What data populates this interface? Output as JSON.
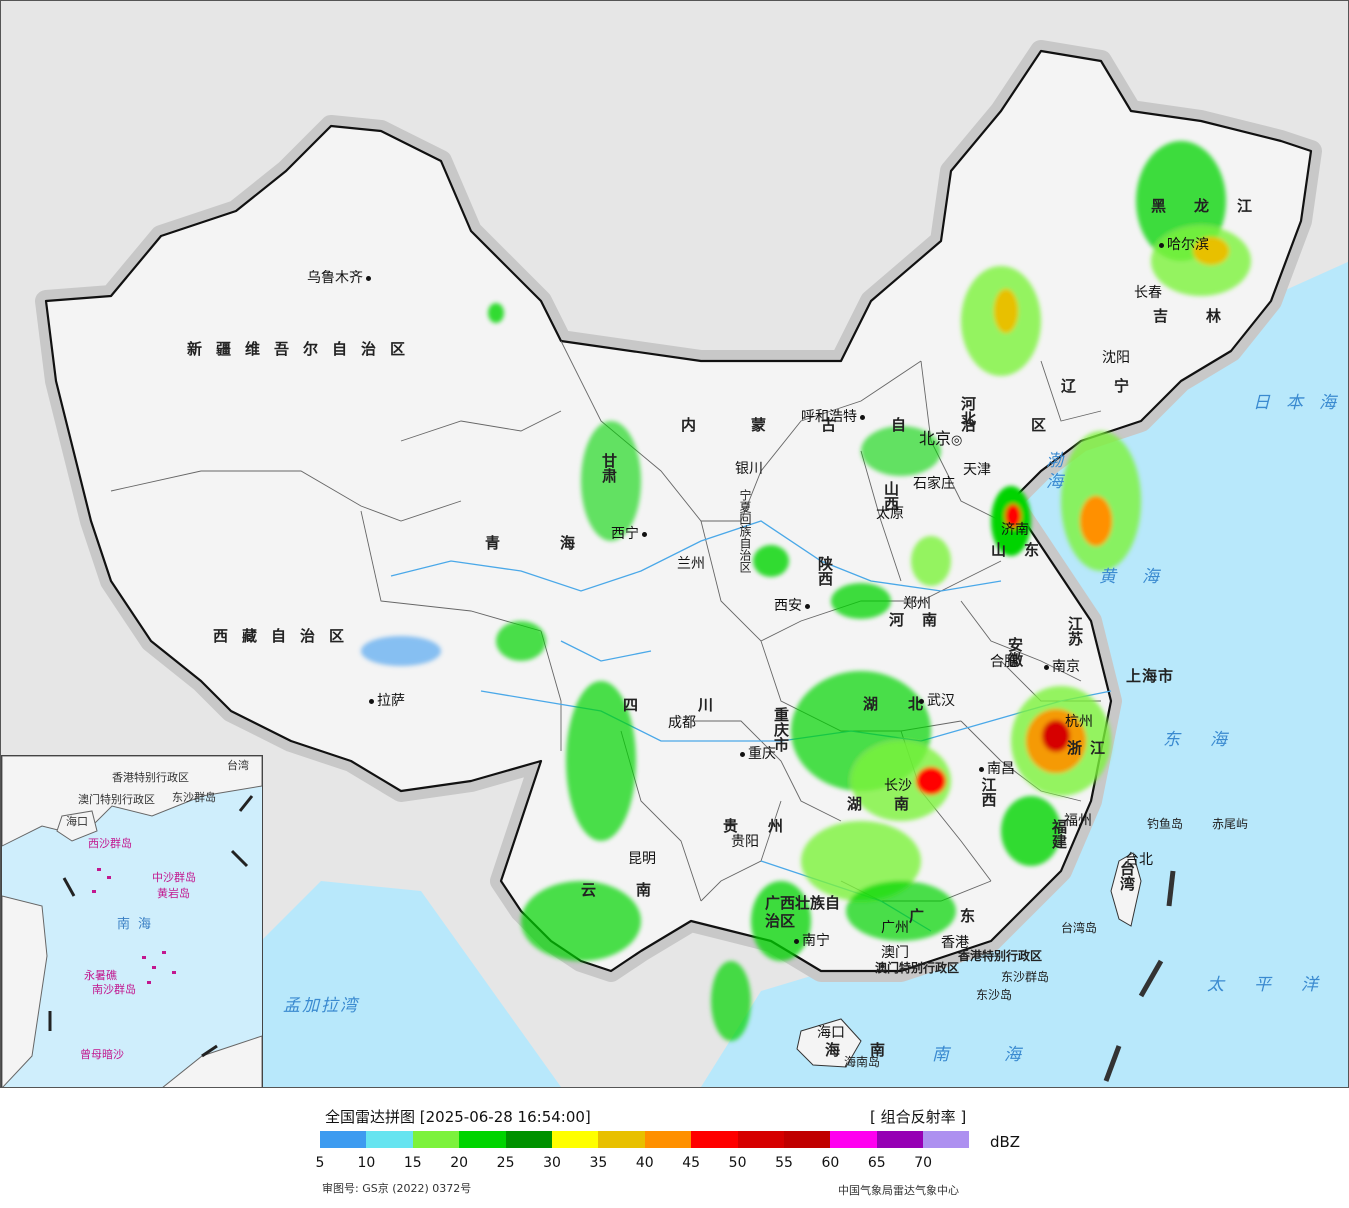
{
  "map": {
    "provinces": [
      {
        "id": "xinjiang",
        "label": "新疆维吾尔自治区"
      },
      {
        "id": "xizang",
        "label": "西藏自治区"
      },
      {
        "id": "qinghai",
        "label": "青海"
      },
      {
        "id": "gansu",
        "label": "甘肃"
      },
      {
        "id": "neimenggu",
        "label": "内蒙古自治区"
      },
      {
        "id": "heilongjiang",
        "label": "黑龙江"
      },
      {
        "id": "jilin",
        "label": "吉林"
      },
      {
        "id": "liaoning",
        "label": "辽宁"
      },
      {
        "id": "hebei",
        "label": "河北"
      },
      {
        "id": "shanxi",
        "label": "山西"
      },
      {
        "id": "shaanxi",
        "label": "陕西"
      },
      {
        "id": "henan",
        "label": "河南"
      },
      {
        "id": "shandong",
        "label": "山东"
      },
      {
        "id": "jiangsu",
        "label": "江苏"
      },
      {
        "id": "anhui",
        "label": "安徽"
      },
      {
        "id": "shanghai",
        "label": "上海市"
      },
      {
        "id": "zhejiang",
        "label": "浙江"
      },
      {
        "id": "hubei",
        "label": "湖北"
      },
      {
        "id": "hunan",
        "label": "湖南"
      },
      {
        "id": "jiangxi",
        "label": "江西"
      },
      {
        "id": "fujian",
        "label": "福建"
      },
      {
        "id": "sichuan",
        "label": "四川"
      },
      {
        "id": "chongqing",
        "label": "重庆市"
      },
      {
        "id": "guizhou",
        "label": "贵州"
      },
      {
        "id": "yunnan",
        "label": "云南"
      },
      {
        "id": "guangxi",
        "label": "广西壮族自治区"
      },
      {
        "id": "guangdong",
        "label": "广东"
      },
      {
        "id": "hainan",
        "label": "海南"
      },
      {
        "id": "taiwan",
        "label": "台湾"
      },
      {
        "id": "ningxia",
        "label": "宁夏回族自治区"
      },
      {
        "id": "hk",
        "label": "香港特别行政区"
      },
      {
        "id": "macau",
        "label": "澳门特别行政区"
      }
    ],
    "cities": [
      {
        "id": "urumqi",
        "label": "乌鲁木齐"
      },
      {
        "id": "lhasa",
        "label": "拉萨"
      },
      {
        "id": "xining",
        "label": "西宁"
      },
      {
        "id": "lanzhou",
        "label": "兰州"
      },
      {
        "id": "yinchuan",
        "label": "银川"
      },
      {
        "id": "hohhot",
        "label": "呼和浩特"
      },
      {
        "id": "beijing",
        "label": "北京"
      },
      {
        "id": "tianjin",
        "label": "天津"
      },
      {
        "id": "shijiazhuang",
        "label": "石家庄"
      },
      {
        "id": "taiyuan",
        "label": "太原"
      },
      {
        "id": "xian",
        "label": "西安"
      },
      {
        "id": "zhengzhou",
        "label": "郑州"
      },
      {
        "id": "jinan",
        "label": "济南"
      },
      {
        "id": "nanjing",
        "label": "南京"
      },
      {
        "id": "hefei",
        "label": "合肥"
      },
      {
        "id": "wuhan",
        "label": "武汉"
      },
      {
        "id": "changsha",
        "label": "长沙"
      },
      {
        "id": "nanchang",
        "label": "南昌"
      },
      {
        "id": "hangzhou",
        "label": "杭州"
      },
      {
        "id": "fuzhou",
        "label": "福州"
      },
      {
        "id": "taibei",
        "label": "台北"
      },
      {
        "id": "chengdu",
        "label": "成都"
      },
      {
        "id": "chongqing",
        "label": "重庆"
      },
      {
        "id": "guiyang",
        "label": "贵阳"
      },
      {
        "id": "kunming",
        "label": "昆明"
      },
      {
        "id": "nanning",
        "label": "南宁"
      },
      {
        "id": "guangzhou",
        "label": "广州"
      },
      {
        "id": "haikou",
        "label": "海口"
      },
      {
        "id": "harbin",
        "label": "哈尔滨"
      },
      {
        "id": "changchun",
        "label": "长春"
      },
      {
        "id": "shenyang",
        "label": "沈阳"
      },
      {
        "id": "hongkong",
        "label": "香港"
      },
      {
        "id": "macao",
        "label": "澳门"
      }
    ],
    "seas": [
      {
        "id": "sea-japan",
        "label": "日本海"
      },
      {
        "id": "bohai",
        "label": "渤海"
      },
      {
        "id": "yellow-sea",
        "label": "黄海"
      },
      {
        "id": "east-sea",
        "label": "东海"
      },
      {
        "id": "pacific",
        "label": "太平洋"
      },
      {
        "id": "south-sea",
        "label": "南海"
      },
      {
        "id": "bay-bengal",
        "label": "孟加拉湾"
      }
    ],
    "islands": [
      {
        "id": "diaoyu",
        "label": "钓鱼岛"
      },
      {
        "id": "chiwei",
        "label": "赤尾屿"
      },
      {
        "id": "taiwan-island",
        "label": "台湾岛"
      },
      {
        "id": "dongsha",
        "label": "东沙群岛"
      },
      {
        "id": "dongsha-island",
        "label": "东沙岛"
      },
      {
        "id": "hainan-island",
        "label": "海南岛"
      }
    ],
    "inset": {
      "sea": "南海",
      "labels": [
        {
          "id": "inset-taiwan",
          "label": "台湾"
        },
        {
          "id": "inset-hk",
          "label": "香港特别行政区"
        },
        {
          "id": "inset-macau",
          "label": "澳门特别行政区"
        },
        {
          "id": "inset-dongsha",
          "label": "东沙群岛"
        },
        {
          "id": "inset-haikou",
          "label": "海口"
        },
        {
          "id": "inset-xisha",
          "label": "西沙群岛"
        },
        {
          "id": "inset-zhongsha",
          "label": "中沙群岛"
        },
        {
          "id": "inset-huangyan",
          "label": "黄岩岛"
        },
        {
          "id": "inset-nansha",
          "label": "南沙群岛"
        },
        {
          "id": "inset-yongshu",
          "label": "永暑礁"
        },
        {
          "id": "inset-zengmu",
          "label": "曾母暗沙"
        }
      ]
    },
    "colors": {
      "land": "#f4f4f4",
      "outside": "#e6e6e6",
      "water": "#b8e8fb",
      "border": "#111111",
      "halo": "#c8c8c8"
    }
  },
  "legend": {
    "title": "全国雷达拼图 [2025-06-28 16:54:00]",
    "product": "[ 组合反射率 ]",
    "unit": "dBZ",
    "ticks": [
      "5",
      "10",
      "15",
      "20",
      "25",
      "30",
      "35",
      "40",
      "45",
      "50",
      "55",
      "60",
      "65",
      "70"
    ],
    "colors": [
      "#3d9bf0",
      "#66e4f0",
      "#7cf23c",
      "#00d400",
      "#009100",
      "#ffff00",
      "#e8c000",
      "#ff9000",
      "#ff0000",
      "#d60000",
      "#c00000",
      "#ff00f0",
      "#9600b4",
      "#ad90f0"
    ]
  },
  "footer": {
    "approval": "审图号: GS京 (2022) 0372号",
    "source": "中国气象局雷达气象中心"
  }
}
